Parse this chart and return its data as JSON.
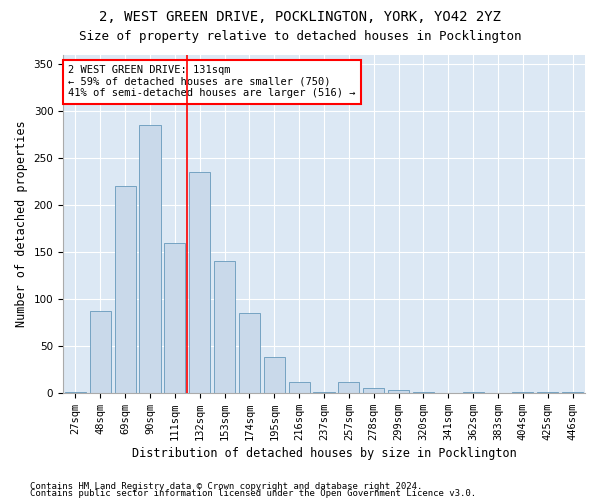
{
  "title1": "2, WEST GREEN DRIVE, POCKLINGTON, YORK, YO42 2YZ",
  "title2": "Size of property relative to detached houses in Pocklington",
  "xlabel": "Distribution of detached houses by size in Pocklington",
  "ylabel": "Number of detached properties",
  "bar_color": "#c9d9ea",
  "bar_edge_color": "#6699bb",
  "background_color": "#dce8f4",
  "categories": [
    "27sqm",
    "48sqm",
    "69sqm",
    "90sqm",
    "111sqm",
    "132sqm",
    "153sqm",
    "174sqm",
    "195sqm",
    "216sqm",
    "237sqm",
    "257sqm",
    "278sqm",
    "299sqm",
    "320sqm",
    "341sqm",
    "362sqm",
    "383sqm",
    "404sqm",
    "425sqm",
    "446sqm"
  ],
  "values": [
    1,
    87,
    220,
    285,
    160,
    235,
    140,
    85,
    38,
    12,
    1,
    12,
    5,
    3,
    1,
    0,
    1,
    0,
    1,
    1,
    1
  ],
  "ylim": [
    0,
    360
  ],
  "yticks": [
    0,
    50,
    100,
    150,
    200,
    250,
    300,
    350
  ],
  "vline_x": 4.5,
  "annotation_text": "2 WEST GREEN DRIVE: 131sqm\n← 59% of detached houses are smaller (750)\n41% of semi-detached houses are larger (516) →",
  "annotation_box_color": "white",
  "annotation_border_color": "red",
  "footnote1": "Contains HM Land Registry data © Crown copyright and database right 2024.",
  "footnote2": "Contains public sector information licensed under the Open Government Licence v3.0.",
  "title1_fontsize": 10,
  "title2_fontsize": 9,
  "xlabel_fontsize": 8.5,
  "ylabel_fontsize": 8.5,
  "tick_fontsize": 7.5,
  "annot_fontsize": 7.5,
  "footnote_fontsize": 6.5
}
